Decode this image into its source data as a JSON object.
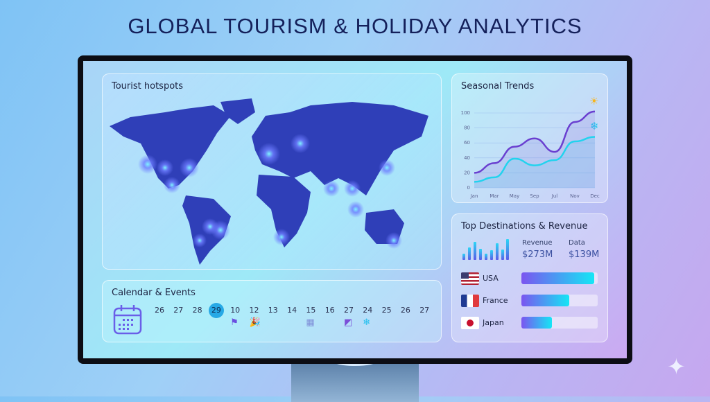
{
  "title": "GLOBAL TOURISM & HOLIDAY ANALYTICS",
  "map": {
    "title": "Tourist hotspots"
  },
  "trend": {
    "title": "Seasonal Trends",
    "icons": [
      "sun-icon",
      "snowflake-icon"
    ]
  },
  "chart_data": {
    "type": "line",
    "title": "Seasonal Trends",
    "categories": [
      "Jan",
      "Mar",
      "May",
      "Sep",
      "Jul",
      "Nov",
      "Dec"
    ],
    "yticks": [
      0,
      20,
      40,
      60,
      80,
      100
    ],
    "ylim": [
      0,
      105
    ],
    "grid": true,
    "series": [
      {
        "color": "#6a3fd0",
        "values": [
          20,
          33,
          55,
          66,
          48,
          88,
          102
        ]
      },
      {
        "color": "#22d3ee",
        "values": [
          8,
          14,
          39,
          30,
          37,
          62,
          68
        ]
      }
    ]
  },
  "dest": {
    "title": "Top Destinations & Revenue",
    "revenue_label": "Revenue",
    "revenue_value": "$273M",
    "data_label": "Data",
    "data_value": "$139M",
    "countries": [
      {
        "name": "USA",
        "fill_pct": 95
      },
      {
        "name": "France",
        "fill_pct": 63
      },
      {
        "name": "Japan",
        "fill_pct": 40
      }
    ]
  },
  "cal": {
    "title": "Calendar & Events",
    "days": [
      "26",
      "27",
      "28",
      "29",
      "10",
      "12",
      "13",
      "14",
      "15",
      "16",
      "27",
      "24",
      "25",
      "26",
      "27"
    ],
    "selected": "29",
    "events": [
      {
        "day": "10",
        "icon": "flag-icon",
        "glyph": "⚑"
      },
      {
        "day": "12",
        "icon": "party-popper-icon",
        "glyph": "🎉"
      },
      {
        "day": "15",
        "icon": "calendar-icon",
        "glyph": "▦"
      },
      {
        "day": "27",
        "icon": "ticket-icon",
        "glyph": "◩"
      },
      {
        "day": "24",
        "icon": "snowflake-icon",
        "glyph": "❄"
      }
    ]
  },
  "colors": {
    "accent": "#27a9e6",
    "land": "#2f3fb8",
    "bezel": "#0c0d14"
  }
}
